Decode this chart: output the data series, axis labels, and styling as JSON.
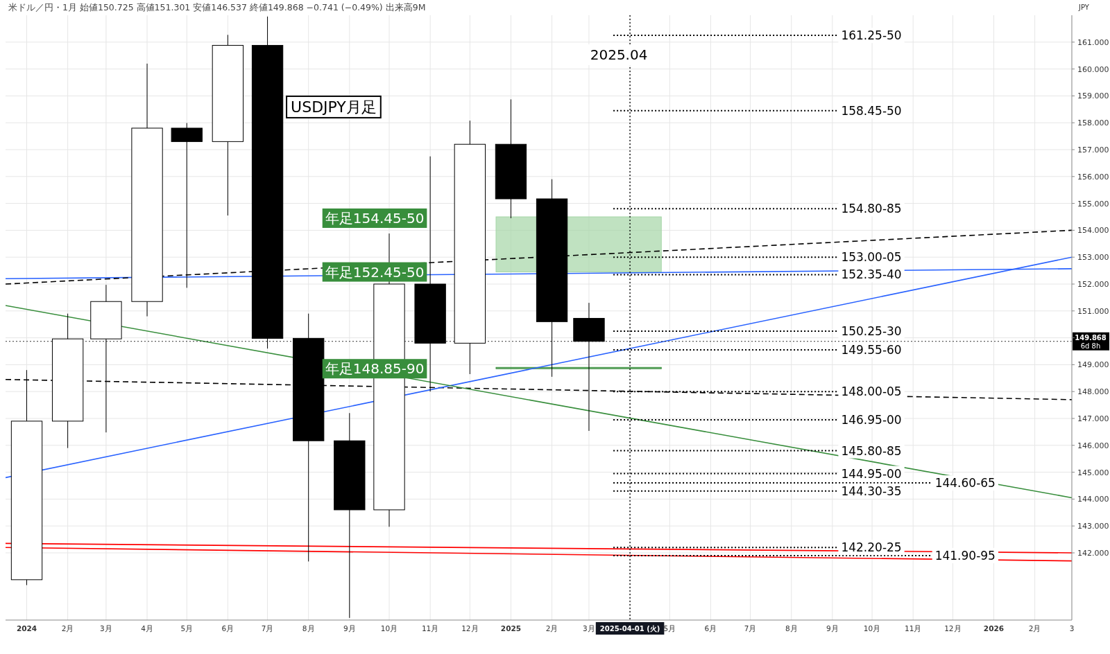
{
  "chart_data": {
    "type": "candlestick",
    "title": "USDJPY月足",
    "subtitle": "米ドル／円・1月 始値150.725 高値151.301 安値146.537 終値149.868 −0.741 (−0.49%) 出来高9M",
    "x": [
      "2024-01",
      "2024-02",
      "2024-03",
      "2024-04",
      "2024-05",
      "2024-06",
      "2024-07",
      "2024-08",
      "2024-09",
      "2024-10",
      "2024-11",
      "2024-12",
      "2025-01",
      "2025-02",
      "2025-03"
    ],
    "ohlc": [
      [
        141.0,
        148.8,
        140.8,
        146.9
      ],
      [
        146.9,
        150.9,
        145.9,
        149.96
      ],
      [
        149.96,
        151.97,
        146.48,
        151.35
      ],
      [
        151.35,
        160.2,
        150.8,
        157.8
      ],
      [
        157.8,
        157.99,
        151.86,
        157.3
      ],
      [
        157.3,
        161.27,
        154.55,
        160.88
      ],
      [
        160.88,
        161.95,
        149.6,
        149.98
      ],
      [
        149.98,
        150.9,
        141.68,
        146.17
      ],
      [
        146.17,
        147.2,
        139.58,
        143.6
      ],
      [
        143.6,
        153.88,
        142.97,
        152.0
      ],
      [
        152.0,
        156.75,
        148.0,
        149.8
      ],
      [
        149.8,
        158.08,
        148.65,
        157.2
      ],
      [
        157.2,
        158.87,
        154.45,
        155.17
      ],
      [
        155.17,
        155.9,
        148.55,
        150.6
      ],
      [
        150.725,
        151.301,
        146.537,
        149.868
      ]
    ],
    "series": [
      {
        "type": "line",
        "color": "#2962ff",
        "x": [
          "2023-12-16",
          "2026-03-01"
        ],
        "values": [
          152.2,
          152.57
        ]
      },
      {
        "type": "line",
        "color": "#000000",
        "line_style": "dashed",
        "x": [
          "2023-12-16",
          "2026-03-01"
        ],
        "values": [
          148.45,
          147.7
        ]
      },
      {
        "type": "line",
        "color": "#000000",
        "line_style": "dashed",
        "x": [
          "2023-12-16",
          "2026-03-01"
        ],
        "values": [
          152.0,
          154.0
        ]
      },
      {
        "type": "line",
        "color": "#2962ff",
        "x": [
          "2023-12-16",
          "2026-03-01"
        ],
        "values": [
          144.8,
          153.0
        ]
      },
      {
        "type": "line",
        "color": "#388e3c",
        "x": [
          "2023-12-16",
          "2026-03-01"
        ],
        "values": [
          151.2,
          144.05
        ]
      },
      {
        "type": "line",
        "color": "#ff0000",
        "x": [
          "2023-12-16",
          "2026-03-01"
        ],
        "values": [
          142.35,
          142.0
        ]
      },
      {
        "type": "line",
        "color": "#ff0000",
        "x": [
          "2023-12-16",
          "2026-03-01"
        ],
        "values": [
          142.2,
          141.7
        ]
      }
    ],
    "xlim": [
      "2023-12-16",
      "2026-03-01"
    ],
    "xticks": [
      {
        "value": "2024-01",
        "label": "2024"
      },
      {
        "value": "2024-02",
        "label": "2月"
      },
      {
        "value": "2024-03",
        "label": "3月"
      },
      {
        "value": "2024-04",
        "label": "4月"
      },
      {
        "value": "2024-05",
        "label": "5月"
      },
      {
        "value": "2024-06",
        "label": "6月"
      },
      {
        "value": "2024-07",
        "label": "7月"
      },
      {
        "value": "2024-08",
        "label": "8月"
      },
      {
        "value": "2024-09",
        "label": "9月"
      },
      {
        "value": "2024-10",
        "label": "10月"
      },
      {
        "value": "2024-11",
        "label": "11月"
      },
      {
        "value": "2024-12",
        "label": "12月"
      },
      {
        "value": "2025-01",
        "label": "2025"
      },
      {
        "value": "2025-02",
        "label": "2月"
      },
      {
        "value": "2025-03",
        "label": "3月"
      },
      {
        "value": "2025-04-01",
        "label": "2025-04-01 (火)"
      },
      {
        "value": "2025-05",
        "label": "5月"
      },
      {
        "value": "2025-06",
        "label": "6月"
      },
      {
        "value": "2025-07",
        "label": "7月"
      },
      {
        "value": "2025-08",
        "label": "8月"
      },
      {
        "value": "2025-09",
        "label": "9月"
      },
      {
        "value": "2025-10",
        "label": "10月"
      },
      {
        "value": "2025-11",
        "label": "11月"
      },
      {
        "value": "2025-12",
        "label": "12月"
      },
      {
        "value": "2026-01",
        "label": "2026"
      },
      {
        "value": "2026-02",
        "label": "2月"
      },
      {
        "value": "2026-03",
        "label": "3"
      }
    ],
    "ylim": [
      139.5,
      162
    ],
    "yticks": [
      {
        "value": 142,
        "label": "142.000"
      },
      {
        "value": 143,
        "label": "143.000"
      },
      {
        "value": 144,
        "label": "144.000"
      },
      {
        "value": 145,
        "label": "145.000"
      },
      {
        "value": 146,
        "label": "146.000"
      },
      {
        "value": 147,
        "label": "147.000"
      },
      {
        "value": 148,
        "label": "148.000"
      },
      {
        "value": 149,
        "label": "149.000"
      },
      {
        "value": 150,
        "label": null
      },
      {
        "value": 151,
        "label": "151.000"
      },
      {
        "value": 152,
        "label": "152.000"
      },
      {
        "value": 153,
        "label": "153.000"
      },
      {
        "value": 154,
        "label": "154.000"
      },
      {
        "value": 155,
        "label": "155.000"
      },
      {
        "value": 156,
        "label": "156.000"
      },
      {
        "value": 157,
        "label": "157.000"
      },
      {
        "value": 158,
        "label": "158.000"
      },
      {
        "value": 159,
        "label": "159.000"
      },
      {
        "value": 160,
        "label": "160.000"
      },
      {
        "value": 161,
        "label": "161.000"
      }
    ],
    "ylabel": "JPY",
    "grid": true,
    "ref_lines": [
      {
        "axis": "x",
        "value": "2025-04-01",
        "label": "2025.04",
        "line_style": "dotted"
      },
      {
        "axis": "y",
        "value": 149.868,
        "label": "149.868 6d 8h",
        "color": "#000000",
        "line_style": "dotted"
      },
      {
        "axis": "y",
        "value": 161.25,
        "label": "161.25-50",
        "line_style": "dotted"
      },
      {
        "axis": "y",
        "value": 158.45,
        "label": "158.45-50",
        "line_style": "dotted"
      },
      {
        "axis": "y",
        "value": 154.8,
        "label": "154.80-85",
        "line_style": "dotted"
      },
      {
        "axis": "y",
        "value": 153.0,
        "label": "153.00-05",
        "line_style": "dotted"
      },
      {
        "axis": "y",
        "value": 152.35,
        "label": "152.35-40",
        "line_style": "dotted"
      },
      {
        "axis": "y",
        "value": 150.25,
        "label": "150.25-30",
        "line_style": "dotted"
      },
      {
        "axis": "y",
        "value": 149.55,
        "label": "149.55-60",
        "line_style": "dotted"
      },
      {
        "axis": "y",
        "value": 148.0,
        "label": "148.00-05",
        "line_style": "dotted"
      },
      {
        "axis": "y",
        "value": 146.95,
        "label": "146.95-00",
        "line_style": "dotted"
      },
      {
        "axis": "y",
        "value": 145.8,
        "label": "145.80-85",
        "line_style": "dotted"
      },
      {
        "axis": "y",
        "value": 144.95,
        "label": "144.95-00",
        "line_style": "dotted"
      },
      {
        "axis": "y",
        "value": 144.6,
        "label": "144.60-65",
        "line_style": "dotted"
      },
      {
        "axis": "y",
        "value": 144.3,
        "label": "144.30-35",
        "line_style": "dotted"
      },
      {
        "axis": "y",
        "value": 142.2,
        "label": "142.20-25",
        "line_style": "dotted"
      },
      {
        "axis": "y",
        "value": 141.9,
        "label": "141.90-95",
        "line_style": "dotted"
      }
    ],
    "bands": [
      {
        "axis": "y",
        "from": 152.45,
        "to": 154.5,
        "color": "#a5d6a7"
      },
      {
        "axis": "y",
        "from": 148.85,
        "to": 148.9,
        "color": "#388e3c"
      }
    ],
    "annotations": [
      "年足154.45-50",
      "年足152.45-50",
      "年足148.85-90"
    ]
  }
}
